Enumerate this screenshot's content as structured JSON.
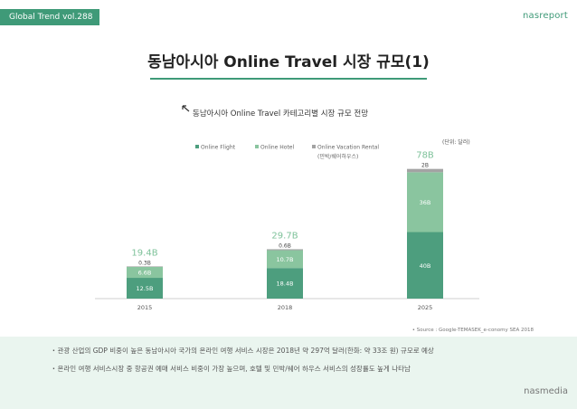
{
  "header": {
    "tag": "Global Trend vol.288",
    "brand": "nasreport"
  },
  "page_title": "동남아시아 Online Travel 시장 규모(1)",
  "chart_data": {
    "type": "bar",
    "title": "동남아시아 Online Travel 카테고리별 시장 규모 전망",
    "unit": "(단위: 달러)",
    "categories": [
      "2015",
      "2018",
      "2025"
    ],
    "series": [
      {
        "name": "Online Flight",
        "values": [
          12.5,
          18.4,
          40
        ],
        "labels": [
          "12.5B",
          "18.4B",
          "40B"
        ],
        "color": "#4d9e7e"
      },
      {
        "name": "Online Hotel",
        "values": [
          6.6,
          10.7,
          36
        ],
        "labels": [
          "6.6B",
          "10.7B",
          "36B"
        ],
        "color": "#8ac59f"
      },
      {
        "name": "Online Vacation Rental",
        "values": [
          0.3,
          0.6,
          2
        ],
        "labels": [
          "0.3B",
          "0.6B",
          "2B"
        ],
        "color": "#a3a3a3"
      }
    ],
    "legend_sub": "(민박/쉐어하우스)",
    "totals": [
      "19.4B",
      "29.7B",
      "78B"
    ],
    "total_color": "#7ec29a",
    "ylim": [
      0,
      80
    ],
    "source": "• Source : Google-TEMASEK_e-conomy SEA 2018"
  },
  "bullets": [
    "관광 산업의 GDP 비중이 높은 동남아시아 국가의 온라인 여행 서비스 시장은 2018년 약 297억 달러(한화: 약 33조 원) 규모로 예상",
    "온라인 여행 서비스시장 중 항공권 예매 서비스 비중이 가장 높으며, 호텔 및 민박/쉐어 하우스 서비스의 성장률도 높게 나타남"
  ],
  "footer_brand": "nasmedia"
}
